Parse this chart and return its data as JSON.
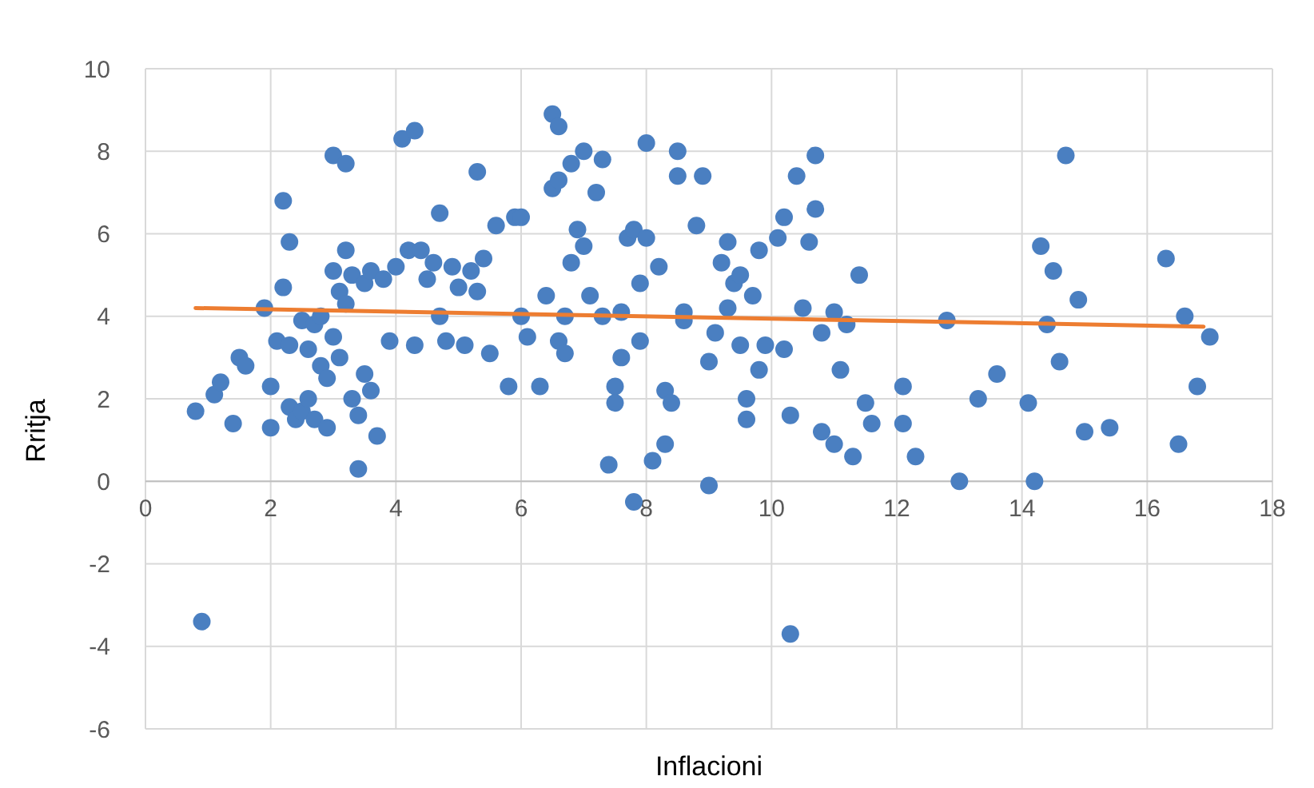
{
  "chart_data": {
    "type": "scatter",
    "xlabel": "Inflacioni",
    "ylabel": "Rritja",
    "xlim": [
      0,
      18
    ],
    "ylim": [
      -6,
      10
    ],
    "xticks": [
      0,
      2,
      4,
      6,
      8,
      10,
      12,
      14,
      16,
      18
    ],
    "yticks": [
      -6,
      -4,
      -2,
      0,
      2,
      4,
      6,
      8,
      10
    ],
    "grid": true,
    "marker": "circle",
    "series": [
      {
        "color": "#4a7fc1",
        "x": [
          0.8,
          0.9,
          1.1,
          1.2,
          1.4,
          1.5,
          1.6,
          1.9,
          2.0,
          2.0,
          2.1,
          2.2,
          2.2,
          2.3,
          2.3,
          2.3,
          2.4,
          2.5,
          2.5,
          2.6,
          2.6,
          2.7,
          2.7,
          2.8,
          2.8,
          2.9,
          2.9,
          3.0,
          3.0,
          3.0,
          3.1,
          3.1,
          3.2,
          3.2,
          3.2,
          3.3,
          3.3,
          3.4,
          3.4,
          3.5,
          3.5,
          3.6,
          3.6,
          3.7,
          3.8,
          3.9,
          4.0,
          4.1,
          4.2,
          4.3,
          4.3,
          4.4,
          4.5,
          4.6,
          4.7,
          4.7,
          4.8,
          4.9,
          5.0,
          5.1,
          5.2,
          5.3,
          5.3,
          5.4,
          5.5,
          5.6,
          5.8,
          5.9,
          6.0,
          6.0,
          6.1,
          6.3,
          6.4,
          6.5,
          6.5,
          6.6,
          6.6,
          6.6,
          6.7,
          6.7,
          6.8,
          6.8,
          6.9,
          7.0,
          7.0,
          7.1,
          7.2,
          7.3,
          7.3,
          7.4,
          7.5,
          7.5,
          7.6,
          7.6,
          7.7,
          7.8,
          7.8,
          7.9,
          7.9,
          8.0,
          8.0,
          8.1,
          8.2,
          8.3,
          8.3,
          8.4,
          8.5,
          8.5,
          8.6,
          8.6,
          8.8,
          8.9,
          9.0,
          9.0,
          9.1,
          9.2,
          9.3,
          9.3,
          9.4,
          9.5,
          9.5,
          9.6,
          9.6,
          9.7,
          9.8,
          9.8,
          9.9,
          10.1,
          10.2,
          10.2,
          10.3,
          10.3,
          10.4,
          10.5,
          10.6,
          10.7,
          10.7,
          10.8,
          10.8,
          11.0,
          11.0,
          11.1,
          11.2,
          11.3,
          11.4,
          11.5,
          11.6,
          12.1,
          12.1,
          12.3,
          12.8,
          13.0,
          13.3,
          13.6,
          14.1,
          14.2,
          14.3,
          14.4,
          14.5,
          14.6,
          14.7,
          14.9,
          15.0,
          15.4,
          16.3,
          16.5,
          16.6,
          16.8,
          17.0
        ],
        "values": [
          1.7,
          -3.4,
          2.1,
          2.4,
          1.4,
          3.0,
          2.8,
          4.2,
          2.3,
          1.3,
          3.4,
          6.8,
          4.7,
          5.8,
          3.3,
          1.8,
          1.5,
          3.9,
          1.7,
          3.2,
          2.0,
          3.8,
          1.5,
          4.0,
          2.8,
          2.5,
          1.3,
          5.1,
          3.5,
          7.9,
          4.6,
          3.0,
          7.7,
          5.6,
          4.3,
          5.0,
          2.0,
          0.3,
          1.6,
          4.8,
          2.6,
          2.2,
          5.1,
          1.1,
          4.9,
          3.4,
          5.2,
          8.3,
          5.6,
          8.5,
          3.3,
          5.6,
          4.9,
          5.3,
          6.5,
          4.0,
          3.4,
          5.2,
          4.7,
          3.3,
          5.1,
          7.5,
          4.6,
          5.4,
          3.1,
          6.2,
          2.3,
          6.4,
          6.4,
          4.0,
          3.5,
          2.3,
          4.5,
          7.1,
          8.9,
          8.6,
          7.3,
          3.4,
          3.1,
          4.0,
          7.7,
          5.3,
          6.1,
          8.0,
          5.7,
          4.5,
          7.0,
          7.8,
          4.0,
          0.4,
          2.3,
          1.9,
          3.0,
          4.1,
          5.9,
          -0.5,
          6.1,
          3.4,
          4.8,
          8.2,
          5.9,
          0.5,
          5.2,
          2.2,
          0.9,
          1.9,
          8.0,
          7.4,
          4.1,
          3.9,
          6.2,
          7.4,
          -0.1,
          2.9,
          3.6,
          5.3,
          5.8,
          4.2,
          4.8,
          5.0,
          3.3,
          2.0,
          1.5,
          4.5,
          5.6,
          2.7,
          3.3,
          5.9,
          6.4,
          3.2,
          -3.7,
          1.6,
          7.4,
          4.2,
          5.8,
          6.6,
          7.9,
          3.6,
          1.2,
          4.1,
          0.9,
          2.7,
          3.8,
          0.6,
          5.0,
          1.9,
          1.4,
          2.3,
          1.4,
          0.6,
          3.9,
          0.0,
          2.0,
          2.6,
          1.9,
          0.0,
          5.7,
          3.8,
          5.1,
          2.9,
          7.9,
          4.4,
          1.2,
          1.3,
          5.4,
          0.9,
          4.0,
          2.3,
          3.5
        ]
      },
      {
        "type": "line",
        "color": "#ed7d31",
        "marker": "none",
        "x": [
          0.8,
          16.9
        ],
        "values": [
          4.2,
          3.75
        ]
      }
    ]
  }
}
